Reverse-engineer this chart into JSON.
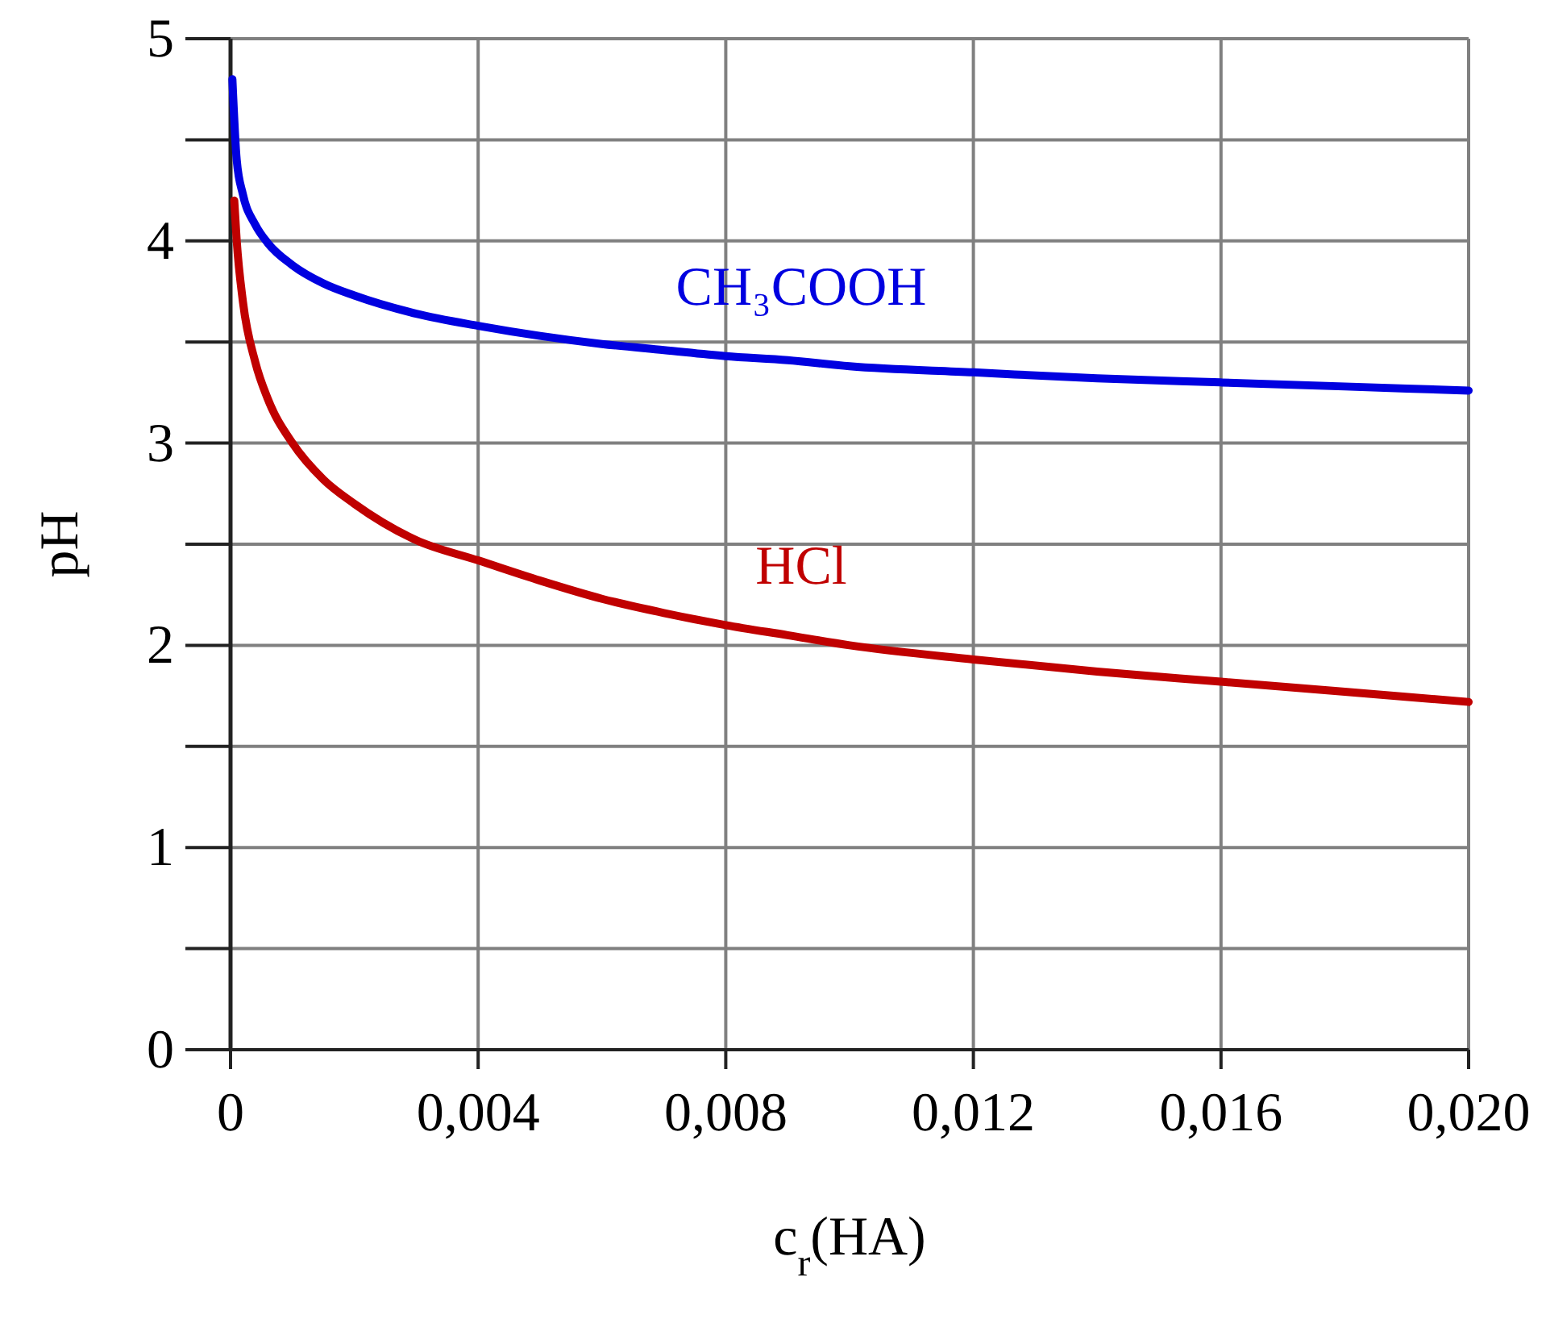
{
  "chart_data": {
    "type": "line",
    "xlabel": "c$_{r}$(HA)",
    "ylabel": "pH",
    "xlim": [
      0,
      0.02
    ],
    "xticks": [
      0,
      {
        "value": 0.004,
        "label": "0,004"
      },
      {
        "value": 0.008,
        "label": "0,008"
      },
      {
        "value": 0.012,
        "label": "0,012"
      },
      {
        "value": 0.016,
        "label": "0,016"
      },
      {
        "value": 0.02,
        "label": "0,020"
      }
    ],
    "ylim": [
      0,
      5
    ],
    "yticks": [
      0,
      {
        "value": 0.5,
        "label": null
      },
      1,
      {
        "value": 1.5,
        "label": null
      },
      2,
      {
        "value": 2.5,
        "label": null
      },
      3,
      {
        "value": 3.5,
        "label": null
      },
      4,
      {
        "value": 4.5,
        "label": null
      },
      5
    ],
    "grid": true,
    "series": [
      {
        "name": "CH₃COOH",
        "color": "#0000e0",
        "x": [
          3e-05,
          0.0001,
          0.0002,
          0.0004,
          0.0006,
          0.001,
          0.0015,
          0.002,
          0.003,
          0.004,
          0.005,
          0.006,
          0.007,
          0.008,
          0.009,
          0.01,
          0.012,
          0.014,
          0.016,
          0.018,
          0.02
        ],
        "values": [
          4.8,
          4.4,
          4.23,
          4.08,
          3.99,
          3.88,
          3.79,
          3.73,
          3.64,
          3.58,
          3.53,
          3.49,
          3.46,
          3.43,
          3.41,
          3.38,
          3.35,
          3.32,
          3.3,
          3.28,
          3.26
        ]
      },
      {
        "name": "HCl",
        "color": "#c00000",
        "x": [
          6e-05,
          0.0001,
          0.0002,
          0.0004,
          0.0006,
          0.001,
          0.0015,
          0.002,
          0.003,
          0.004,
          0.005,
          0.006,
          0.007,
          0.008,
          0.009,
          0.01,
          0.012,
          0.014,
          0.016,
          0.018,
          0.02
        ],
        "values": [
          4.2,
          4.0,
          3.7,
          3.4,
          3.22,
          3.0,
          2.82,
          2.7,
          2.52,
          2.42,
          2.32,
          2.23,
          2.16,
          2.1,
          2.05,
          2.0,
          1.93,
          1.87,
          1.82,
          1.77,
          1.72
        ]
      }
    ]
  }
}
